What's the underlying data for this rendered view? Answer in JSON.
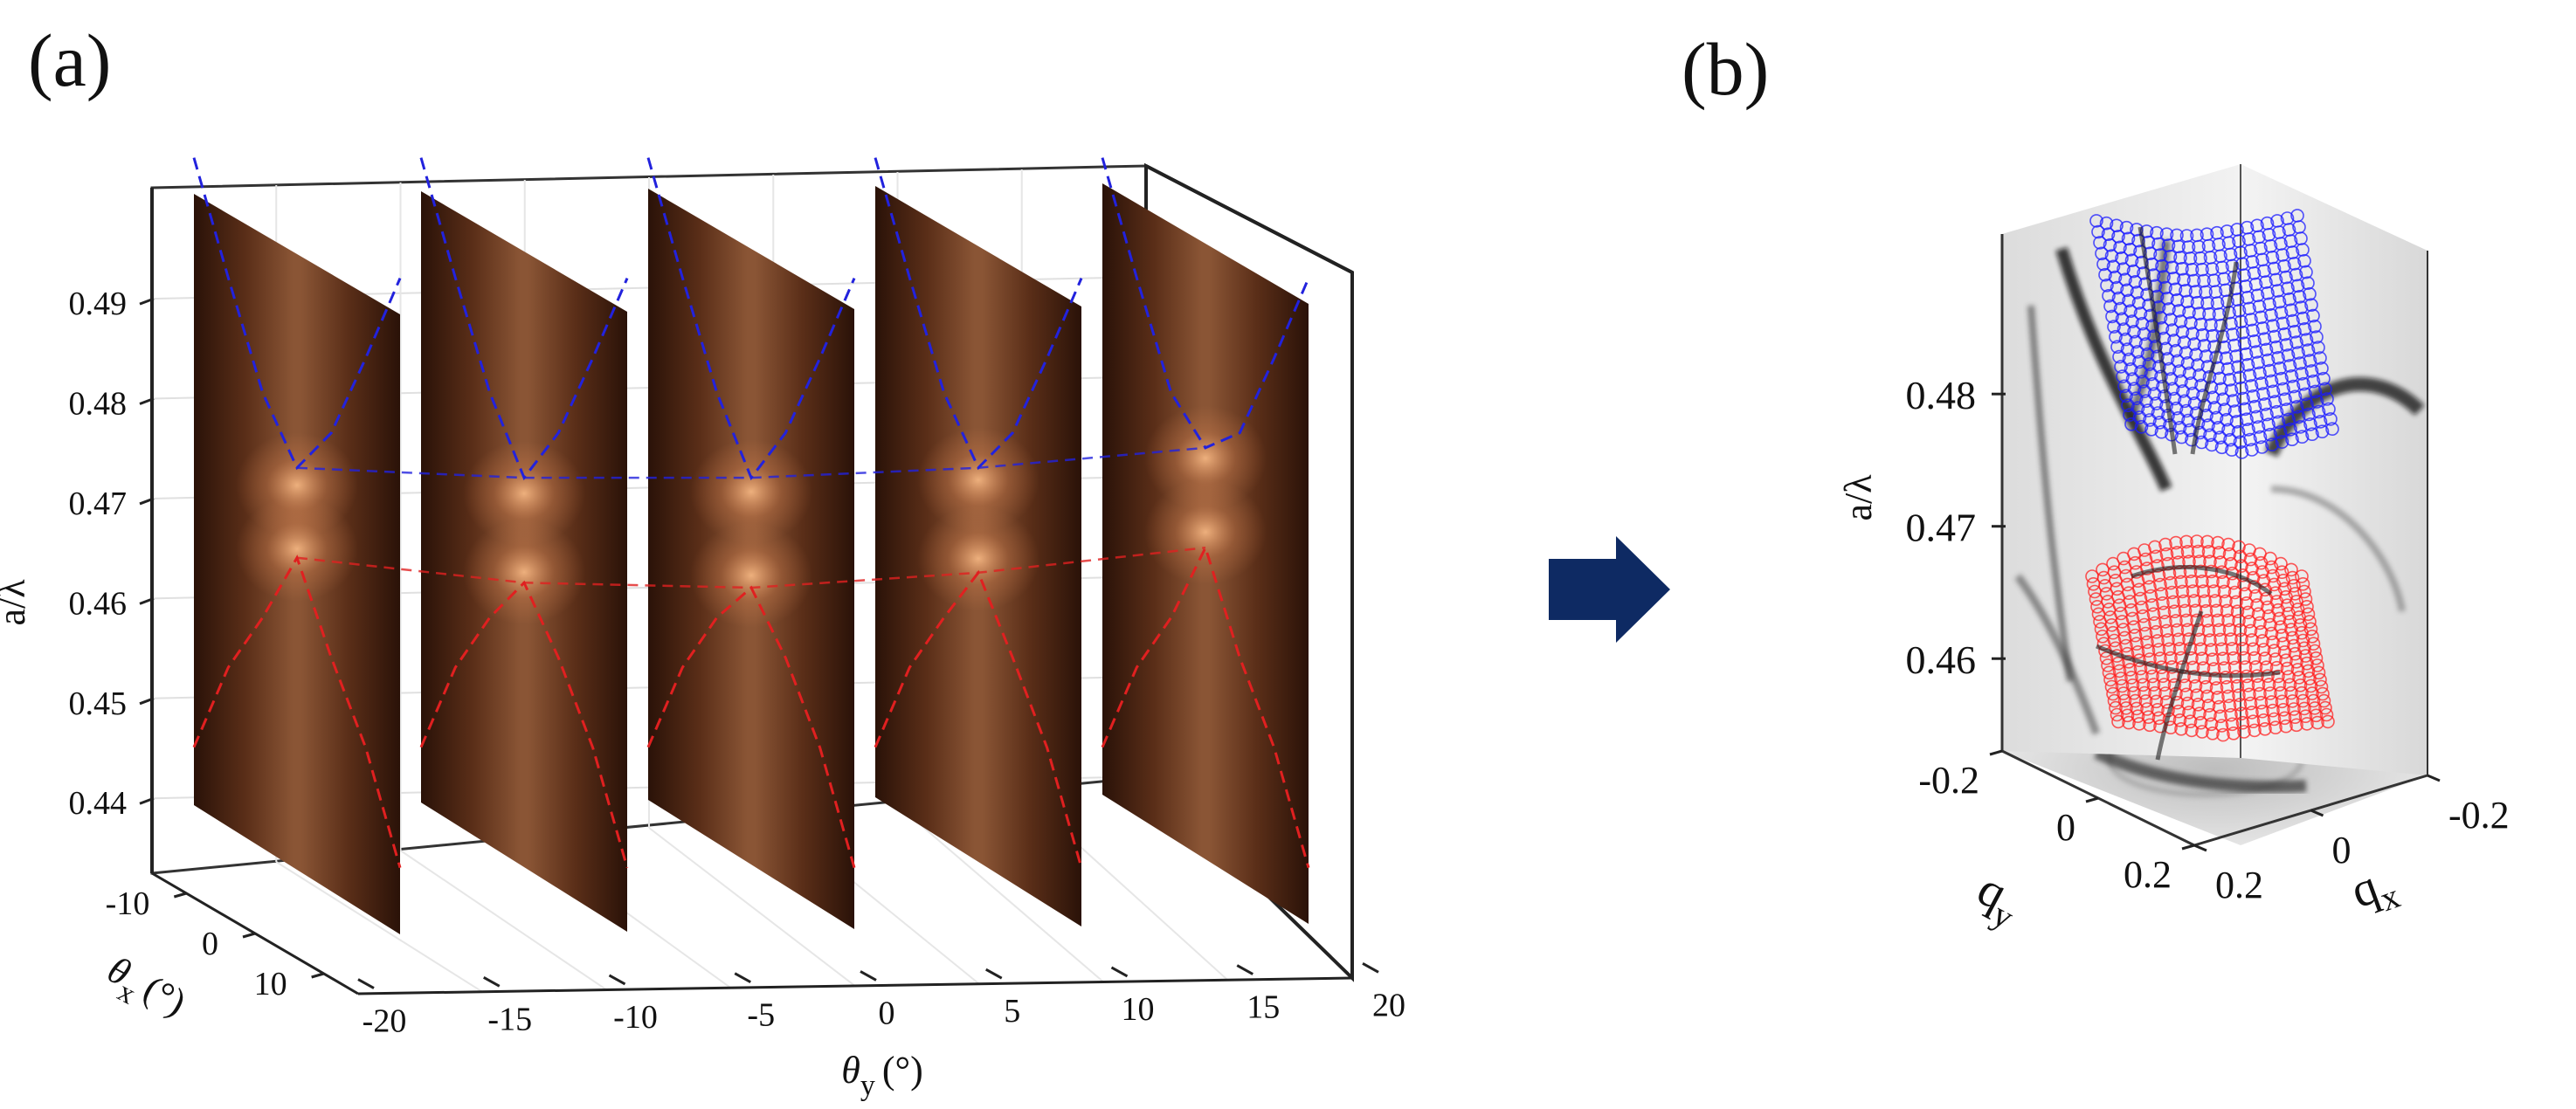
{
  "panel_labels": [
    "(a)",
    "(b)"
  ],
  "colors": {
    "upper_band": "#1a1aff",
    "lower_band": "#ff2020",
    "arrow": "#0e2a63",
    "slice_dark": "#2a1208",
    "slice_glow": "#ffc08a"
  },
  "chart_data": [
    {
      "type": "3d-slices",
      "panel": "(a)",
      "zlabel": "a/λ",
      "xlabel_symbol": "θ",
      "xlabel_sub": "y",
      "xlabel_unit": "(°)",
      "ylabel_symbol": "θ",
      "ylabel_sub": "x",
      "ylabel_unit": "(°)",
      "z_ticks": [
        "0.49",
        "0.48",
        "0.47",
        "0.46",
        "0.45",
        "0.44"
      ],
      "z_tick_values": [
        0.49,
        0.48,
        0.47,
        0.46,
        0.45,
        0.44
      ],
      "zlim": [
        0.436,
        0.497
      ],
      "x_ticks": [
        "-20",
        "-15",
        "-10",
        "-5",
        "0",
        "5",
        "10",
        "15",
        "20"
      ],
      "x_tick_values": [
        -20,
        -15,
        -10,
        -5,
        0,
        5,
        10,
        15,
        20
      ],
      "xlim": [
        -20,
        20
      ],
      "y_ticks": [
        "-10",
        "0",
        "10"
      ],
      "y_tick_values": [
        -10,
        0,
        10
      ],
      "ylim": [
        -15,
        15
      ],
      "grid": true,
      "slice_theta_y": [
        -16,
        -8,
        0,
        8,
        16
      ],
      "series": [
        {
          "color": "#2222dd",
          "dash": true,
          "vertex_a": [
            0.4695,
            0.4685,
            0.4685,
            0.4695,
            0.4715
          ],
          "curve_x": [
            -15,
            -10,
            -5,
            0,
            5,
            10,
            15
          ],
          "curve_a": [
            0.4945,
            0.4845,
            0.475,
            0.4685,
            0.475,
            0.4845,
            0.4945
          ]
        },
        {
          "color": "#e02020",
          "dash": true,
          "vertex_a": [
            0.4605,
            0.458,
            0.4575,
            0.459,
            0.4615
          ],
          "curve_x": [
            -15,
            -10,
            -5,
            0,
            5,
            10,
            15
          ],
          "curve_a": [
            0.4355,
            0.4455,
            0.4525,
            0.4595,
            0.4525,
            0.4455,
            0.4355
          ]
        }
      ]
    },
    {
      "type": "3d-scatter",
      "panel": "(b)",
      "zlabel": "a/λ",
      "z_ticks": [
        "0.48",
        "0.47",
        "0.46"
      ],
      "z_tick_values": [
        0.48,
        0.47,
        0.46
      ],
      "zlim": [
        0.455,
        0.488
      ],
      "qy_label": "q",
      "qy_sub": "y",
      "qx_label": "q",
      "qx_sub": "x",
      "qy_ticks": [
        "-0.2",
        "0",
        "0.2"
      ],
      "qx_ticks": [
        "0.2",
        "0",
        "-0.2"
      ],
      "series": [
        {
          "color": "#1a1aff",
          "band": "upper"
        },
        {
          "color": "#ff2020",
          "band": "lower"
        }
      ]
    }
  ]
}
